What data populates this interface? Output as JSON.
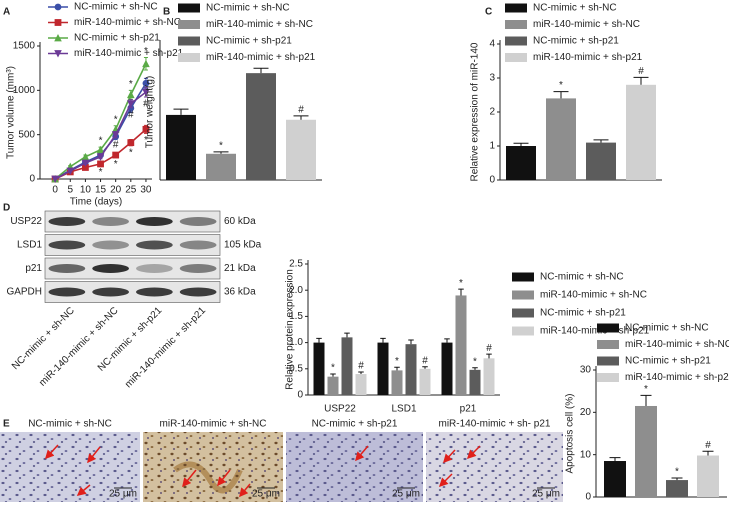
{
  "chart_data": [
    {
      "type": "line",
      "panel": "A",
      "x_label": "Time (days)",
      "y_label": "Tumor volume (mm³)",
      "x": [
        0,
        5,
        10,
        15,
        20,
        25,
        30
      ],
      "xlim": [
        -5,
        32
      ],
      "xticks": [
        0,
        5,
        10,
        15,
        20,
        25,
        30
      ],
      "ylim": [
        0,
        1500
      ],
      "yticks": [
        0,
        500,
        1000,
        1500
      ],
      "series": [
        {
          "name": "NC-mimic + sh-NC",
          "color": "#3b4fa8",
          "marker": "circle",
          "sig_position": "above",
          "values": [
            0,
            100,
            190,
            270,
            480,
            800,
            1080
          ],
          "errors": [
            0,
            10,
            15,
            25,
            35,
            45,
            55
          ],
          "sig": [
            null,
            null,
            null,
            null,
            null,
            null,
            null
          ]
        },
        {
          "name": "miR-140-mimic + sh-NC",
          "color": "#c0272d",
          "marker": "square",
          "sig_position": "below",
          "values": [
            0,
            80,
            130,
            170,
            270,
            410,
            560
          ],
          "errors": [
            0,
            8,
            12,
            18,
            25,
            35,
            45
          ],
          "sig": [
            null,
            null,
            null,
            "*",
            "*",
            "*",
            "*"
          ]
        },
        {
          "name": "NC-mimic + sh-p21",
          "color": "#5aaa46",
          "marker": "triangle-up",
          "sig_position": "above",
          "values": [
            0,
            140,
            250,
            330,
            560,
            950,
            1300
          ],
          "errors": [
            0,
            12,
            20,
            30,
            40,
            50,
            70
          ],
          "sig": [
            null,
            null,
            null,
            "*",
            "*",
            "*",
            "*"
          ]
        },
        {
          "name": "miR-140-mimic + sh-p21",
          "color": "#6b3a96",
          "marker": "triangle-down",
          "sig_position": "below",
          "values": [
            0,
            90,
            180,
            250,
            500,
            850,
            980
          ],
          "errors": [
            0,
            10,
            15,
            22,
            35,
            45,
            55
          ],
          "sig": [
            null,
            null,
            null,
            null,
            "#",
            "#",
            "#"
          ]
        }
      ]
    },
    {
      "type": "bar",
      "panel": "B",
      "y_label": "Tumor weight(g)",
      "ylim": [
        0,
        1.4
      ],
      "series": [
        {
          "name": "NC-mimic + sh-NC",
          "color": "#111111",
          "values": [
            0.67
          ],
          "errors": [
            0.06
          ],
          "sig": [
            null
          ]
        },
        {
          "name": "miR-140-mimic + sh-NC",
          "color": "#8e8e8e",
          "values": [
            0.27
          ],
          "errors": [
            0.02
          ],
          "sig": [
            "*"
          ]
        },
        {
          "name": "NC-mimic + sh-p21",
          "color": "#5c5c5c",
          "values": [
            1.1
          ],
          "errors": [
            0.05
          ],
          "sig": [
            null
          ]
        },
        {
          "name": "miR-140-mimic + sh-p21",
          "color": "#d0d0d0",
          "values": [
            0.62
          ],
          "errors": [
            0.04
          ],
          "sig": [
            "#"
          ]
        }
      ]
    },
    {
      "type": "bar",
      "panel": "C",
      "y_label": "Relative expression of miR-140",
      "ylim": [
        0,
        4
      ],
      "yticks": [
        0,
        1,
        2,
        3,
        4
      ],
      "series": [
        {
          "name": "NC-mimic + sh-NC",
          "color": "#111111",
          "values": [
            1.0
          ],
          "errors": [
            0.08
          ],
          "sig": [
            null
          ]
        },
        {
          "name": "miR-140-mimic + sh-NC",
          "color": "#8e8e8e",
          "values": [
            2.4
          ],
          "errors": [
            0.2
          ],
          "sig": [
            "*"
          ]
        },
        {
          "name": "NC-mimic + sh-p21",
          "color": "#5c5c5c",
          "values": [
            1.1
          ],
          "errors": [
            0.08
          ],
          "sig": [
            null
          ]
        },
        {
          "name": "miR-140-mimic + sh-p21",
          "color": "#d0d0d0",
          "values": [
            2.8
          ],
          "errors": [
            0.22
          ],
          "sig": [
            "#"
          ]
        }
      ]
    },
    {
      "type": "bar",
      "y_label": "Relative protein expression",
      "categories": [
        "USP22",
        "LSD1",
        "p21"
      ],
      "ylim": [
        0,
        2.5
      ],
      "yticks": [
        0,
        0.5,
        {
          "value": 1,
          "label": "1.0"
        },
        1.5,
        {
          "value": 2,
          "label": "2.0"
        },
        2.5
      ],
      "series": [
        {
          "name": "NC-mimic + sh-NC",
          "color": "#111111",
          "values": [
            1.0,
            1.0,
            1.0
          ],
          "errors": [
            0.08,
            0.08,
            0.07
          ],
          "sig": [
            null,
            null,
            null
          ]
        },
        {
          "name": "miR-140-mimic + sh-NC",
          "color": "#8e8e8e",
          "values": [
            0.35,
            0.47,
            1.9
          ],
          "errors": [
            0.05,
            0.06,
            0.12
          ],
          "sig": [
            "*",
            "*",
            "*"
          ]
        },
        {
          "name": "NC-mimic + sh-p21",
          "color": "#5c5c5c",
          "values": [
            1.1,
            0.97,
            0.48
          ],
          "errors": [
            0.08,
            0.08,
            0.04
          ],
          "sig": [
            null,
            null,
            "*"
          ]
        },
        {
          "name": "miR-140-mimic + sh-p21",
          "color": "#d0d0d0",
          "values": [
            0.4,
            0.5,
            0.7
          ],
          "errors": [
            0.04,
            0.04,
            0.08
          ],
          "sig": [
            "#",
            "#",
            "#"
          ]
        }
      ]
    },
    {
      "type": "bar",
      "y_label": "Apoptosis cell (%)",
      "ylim": [
        0,
        30
      ],
      "yticks": [
        0,
        10,
        20,
        30
      ],
      "series": [
        {
          "name": "NC-mimic + sh-NC",
          "color": "#111111",
          "values": [
            8.5
          ],
          "errors": [
            0.8
          ],
          "sig": [
            null
          ]
        },
        {
          "name": "miR-140-mimic + sh-NC",
          "color": "#8e8e8e",
          "values": [
            21.5
          ],
          "errors": [
            2.5
          ],
          "sig": [
            "*"
          ]
        },
        {
          "name": "NC-mimic + sh-p21",
          "color": "#5c5c5c",
          "values": [
            4
          ],
          "errors": [
            0.5
          ],
          "sig": [
            "*"
          ]
        },
        {
          "name": "miR-140-mimic + sh-p21",
          "color": "#d0d0d0",
          "values": [
            9.8
          ],
          "errors": [
            1.0
          ],
          "sig": [
            "#"
          ]
        }
      ]
    }
  ],
  "blot": {
    "panel": "D",
    "rows": [
      {
        "protein": "USP22",
        "size": "60 kDa"
      },
      {
        "protein": "LSD1",
        "size": "105 kDa"
      },
      {
        "protein": "p21",
        "size": "21 kDa"
      },
      {
        "protein": "GAPDH",
        "size": "36 kDa"
      }
    ],
    "lanes": [
      "NC-mimic + sh-NC",
      "miR-140-mimic + sh-NC",
      "NC-mimic + sh-p21",
      "miR-140-mimic + sh-p21"
    ]
  },
  "micrographs": {
    "panel": "E",
    "images": [
      {
        "title": "NC-mimic + sh-NC",
        "scale": "25 μm"
      },
      {
        "title": "miR-140-mimic + sh-NC",
        "scale": "25 μm"
      },
      {
        "title": "NC-mimic + sh-p21",
        "scale": "25 μm"
      },
      {
        "title": "miR-140-mimic + sh- p21",
        "scale": "25 μm"
      }
    ]
  }
}
